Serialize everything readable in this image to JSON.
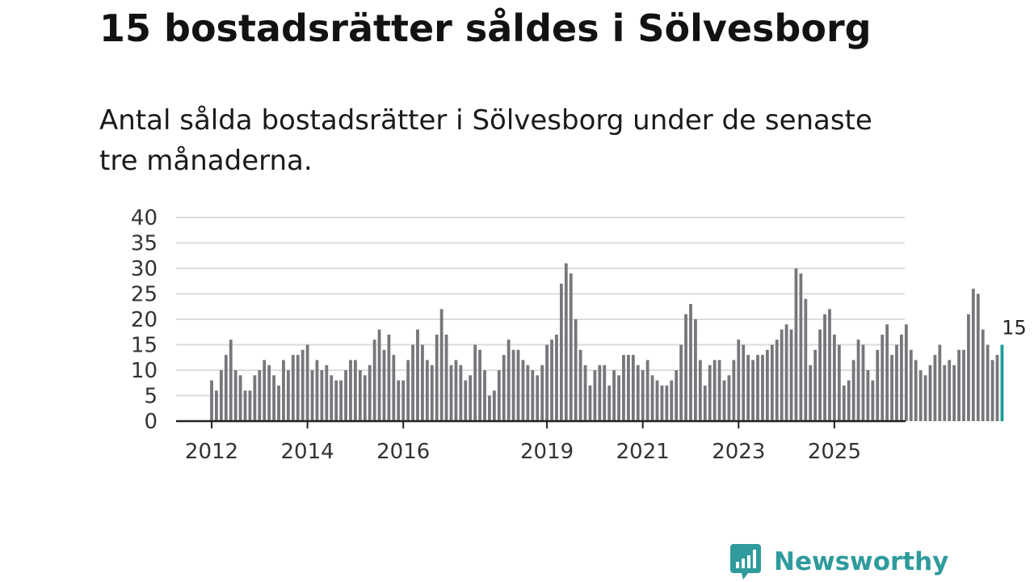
{
  "title": "15 bostadsrätter såldes i Sölvesborg",
  "subtitle": "Antal sålda bostadsrätter i Sölvesborg under de senaste tre månaderna.",
  "brand": {
    "name": "Newsworthy",
    "logo_icon": "bar-chart-speech-bubble-icon",
    "color": "#2f9b9c"
  },
  "colors": {
    "bar": "#77767b",
    "highlight": "#1a9c98",
    "grid": "#dcdcdc",
    "axis": "#222222"
  },
  "chart_data": {
    "type": "bar",
    "title": "15 bostadsrätter såldes i Sölvesborg",
    "xlabel": "",
    "ylabel": "",
    "ylim": [
      0,
      40
    ],
    "yticks": [
      "0",
      "5",
      "10",
      "15",
      "20",
      "25",
      "30",
      "35",
      "40"
    ],
    "grid": true,
    "start": "2012-01",
    "xtick_labels": [
      {
        "label": "2012",
        "index": 0
      },
      {
        "label": "2014",
        "index": 20
      },
      {
        "label": "2016",
        "index": 40
      },
      {
        "label": "2019",
        "index": 70
      },
      {
        "label": "2021",
        "index": 90
      },
      {
        "label": "2023",
        "index": 110
      },
      {
        "label": "2025",
        "index": 130
      }
    ],
    "highlight_label": "15",
    "values": [
      8,
      6,
      10,
      13,
      16,
      10,
      9,
      6,
      6,
      9,
      10,
      12,
      11,
      9,
      7,
      12,
      10,
      13,
      13,
      14,
      15,
      10,
      12,
      10,
      11,
      9,
      8,
      8,
      10,
      12,
      12,
      10,
      9,
      11,
      16,
      18,
      14,
      17,
      13,
      8,
      8,
      12,
      15,
      18,
      15,
      12,
      11,
      17,
      22,
      17,
      11,
      12,
      11,
      8,
      9,
      15,
      14,
      10,
      5,
      6,
      10,
      13,
      16,
      14,
      14,
      12,
      11,
      10,
      9,
      11,
      15,
      16,
      17,
      27,
      31,
      29,
      20,
      14,
      11,
      7,
      10,
      11,
      11,
      7,
      10,
      9,
      13,
      13,
      13,
      11,
      10,
      12,
      9,
      8,
      7,
      7,
      8,
      10,
      15,
      21,
      23,
      20,
      12,
      7,
      11,
      12,
      12,
      8,
      9,
      12,
      16,
      15,
      13,
      12,
      13,
      13,
      14,
      15,
      16,
      18,
      19,
      18,
      30,
      29,
      24,
      11,
      14,
      18,
      21,
      22,
      17,
      15,
      7,
      8,
      12,
      16,
      15,
      10,
      8,
      14,
      17,
      19,
      13,
      15,
      17,
      19,
      14,
      12,
      10,
      9,
      11,
      13,
      15,
      11,
      12,
      11,
      14,
      14,
      21,
      26,
      25,
      18,
      15,
      12,
      13,
      15
    ]
  }
}
